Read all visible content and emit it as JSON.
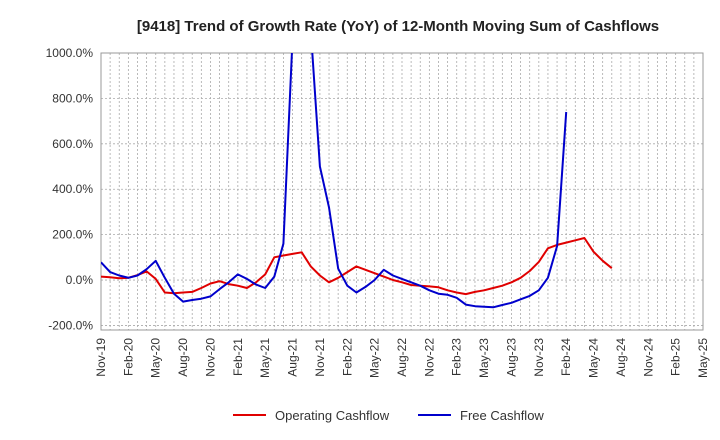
{
  "chart_data": {
    "type": "line",
    "title": "[9418]  Trend of Growth Rate (YoY) of 12-Month Moving Sum of Cashflows",
    "xlabel": "",
    "ylabel": "",
    "ylim": [
      -220,
      1000
    ],
    "y_ticks": [
      1000,
      800,
      600,
      400,
      200,
      0,
      -200
    ],
    "y_tick_labels": [
      "1000.0%",
      "800.0%",
      "600.0%",
      "400.0%",
      "200.0%",
      "0.0%",
      "-200.0%"
    ],
    "x_tick_labels": [
      "Nov-19",
      "Feb-20",
      "May-20",
      "Aug-20",
      "Nov-20",
      "Feb-21",
      "May-21",
      "Aug-21",
      "Nov-21",
      "Feb-22",
      "May-22",
      "Aug-22",
      "Nov-22",
      "Feb-23",
      "May-23",
      "Aug-23",
      "Nov-23",
      "Feb-24",
      "May-24",
      "Aug-24",
      "Nov-24",
      "Feb-25",
      "May-25"
    ],
    "grid": true,
    "legend_position": "bottom",
    "series": [
      {
        "name": "Operating Cashflow",
        "color": "#e00000",
        "start": "Nov-19",
        "values": [
          15,
          12,
          8,
          10,
          22,
          38,
          5,
          -55,
          -58,
          -55,
          -52,
          -35,
          -15,
          -5,
          -18,
          -25,
          -35,
          -10,
          25,
          100,
          108,
          115,
          122,
          60,
          20,
          -10,
          10,
          35,
          60,
          45,
          30,
          15,
          0,
          -10,
          -22,
          -25,
          -28,
          -32,
          -45,
          -55,
          -62,
          -52,
          -45,
          -35,
          -25,
          -10,
          10,
          40,
          80,
          140,
          155,
          165,
          175,
          185,
          125,
          85,
          52
        ]
      },
      {
        "name": "Free Cashflow",
        "color": "#0000cc",
        "start": "Nov-19",
        "values": [
          78,
          35,
          20,
          10,
          20,
          48,
          85,
          10,
          -60,
          -95,
          -88,
          -82,
          -72,
          -40,
          -10,
          25,
          5,
          -20,
          -35,
          15,
          160,
          1060,
          1150,
          1100,
          500,
          320,
          50,
          -25,
          -55,
          -30,
          0,
          45,
          20,
          5,
          -10,
          -25,
          -45,
          -60,
          -65,
          -78,
          -108,
          -115,
          -118,
          -120,
          -110,
          -100,
          -85,
          -70,
          -45,
          10,
          150,
          740
        ]
      }
    ]
  }
}
